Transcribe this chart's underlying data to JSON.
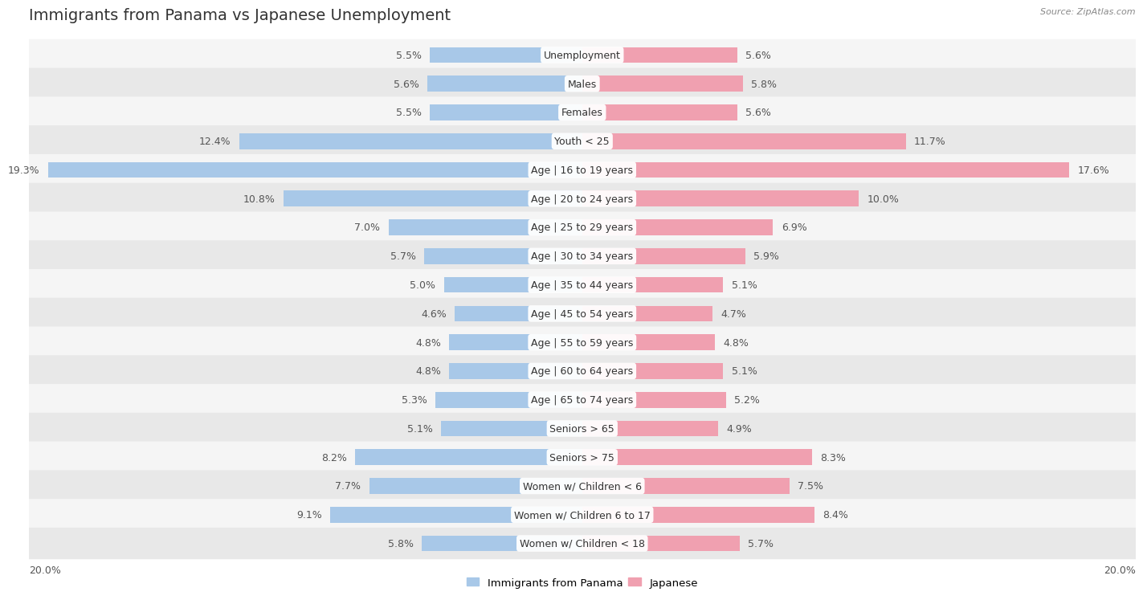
{
  "title": "Immigrants from Panama vs Japanese Unemployment",
  "source": "Source: ZipAtlas.com",
  "categories": [
    "Unemployment",
    "Males",
    "Females",
    "Youth < 25",
    "Age | 16 to 19 years",
    "Age | 20 to 24 years",
    "Age | 25 to 29 years",
    "Age | 30 to 34 years",
    "Age | 35 to 44 years",
    "Age | 45 to 54 years",
    "Age | 55 to 59 years",
    "Age | 60 to 64 years",
    "Age | 65 to 74 years",
    "Seniors > 65",
    "Seniors > 75",
    "Women w/ Children < 6",
    "Women w/ Children 6 to 17",
    "Women w/ Children < 18"
  ],
  "panama_values": [
    5.5,
    5.6,
    5.5,
    12.4,
    19.3,
    10.8,
    7.0,
    5.7,
    5.0,
    4.6,
    4.8,
    4.8,
    5.3,
    5.1,
    8.2,
    7.7,
    9.1,
    5.8
  ],
  "japanese_values": [
    5.6,
    5.8,
    5.6,
    11.7,
    17.6,
    10.0,
    6.9,
    5.9,
    5.1,
    4.7,
    4.8,
    5.1,
    5.2,
    4.9,
    8.3,
    7.5,
    8.4,
    5.7
  ],
  "panama_color": "#a8c8e8",
  "japanese_color": "#f0a0b0",
  "background_color": "#ffffff",
  "row_bg_light": "#f5f5f5",
  "row_bg_dark": "#e8e8e8",
  "xlim": 20.0,
  "legend_panama": "Immigrants from Panama",
  "legend_japanese": "Japanese",
  "bar_height": 0.55,
  "title_fontsize": 14,
  "label_fontsize": 9,
  "category_fontsize": 9,
  "value_color": "#555555"
}
